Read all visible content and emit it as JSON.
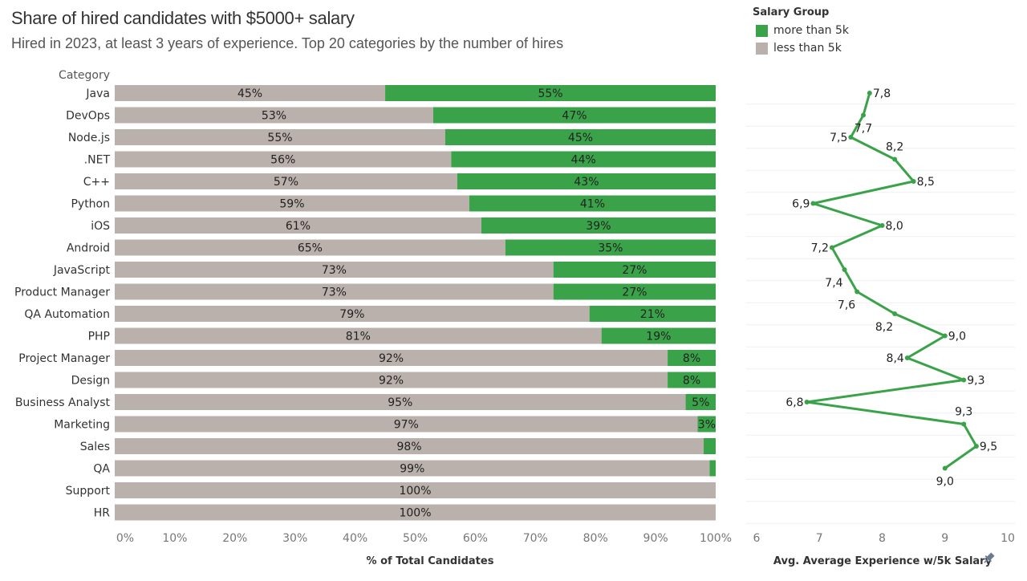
{
  "header": {
    "title": "Share of hired candidates with $5000+ salary",
    "subtitle": "Hired in 2023, at least 3 years of experience. Top 20 categories by the number of hires"
  },
  "legend": {
    "title": "Salary Group",
    "items": [
      {
        "label": "more than 5k",
        "color": "#3aa349"
      },
      {
        "label": "less than 5k",
        "color": "#bab0ac"
      }
    ]
  },
  "chart_data": [
    {
      "type": "bar",
      "stacked": true,
      "orientation": "horizontal",
      "row_header": "Category",
      "categories": [
        "Java",
        "DevOps",
        "Node.js",
        ".NET",
        "C++",
        "Python",
        "iOS",
        "Android",
        "JavaScript",
        "Product Manager",
        "QA Automation",
        "PHP",
        "Project Manager",
        "Design",
        "Business Analyst",
        "Marketing",
        "Sales",
        "QA",
        "Support",
        "HR"
      ],
      "series": [
        {
          "name": "less than 5k",
          "color": "#bab0ac",
          "values": [
            45,
            53,
            55,
            56,
            57,
            59,
            61,
            65,
            73,
            73,
            79,
            81,
            92,
            92,
            95,
            97,
            98,
            99,
            100,
            100
          ],
          "labels": [
            "45%",
            "53%",
            "55%",
            "56%",
            "57%",
            "59%",
            "61%",
            "65%",
            "73%",
            "73%",
            "79%",
            "81%",
            "92%",
            "92%",
            "95%",
            "97%",
            "98%",
            "99%",
            "100%",
            "100%"
          ]
        },
        {
          "name": "more than 5k",
          "color": "#3aa349",
          "values": [
            55,
            47,
            45,
            44,
            43,
            41,
            39,
            35,
            27,
            27,
            21,
            19,
            8,
            8,
            5,
            3,
            2,
            1,
            0,
            0
          ],
          "labels": [
            "55%",
            "47%",
            "45%",
            "44%",
            "43%",
            "41%",
            "39%",
            "35%",
            "27%",
            "27%",
            "21%",
            "19%",
            "8%",
            "8%",
            "5%",
            "3%",
            "",
            "",
            "",
            ""
          ]
        }
      ],
      "xlabel": "% of Total Candidates",
      "xlim": [
        0,
        100
      ],
      "xticks": [
        "0%",
        "10%",
        "20%",
        "30%",
        "40%",
        "50%",
        "60%",
        "70%",
        "80%",
        "90%",
        "100%"
      ]
    },
    {
      "type": "line",
      "orientation": "vertical",
      "color": "#3aa349",
      "categories": [
        "Java",
        "DevOps",
        "Node.js",
        ".NET",
        "C++",
        "Python",
        "iOS",
        "Android",
        "JavaScript",
        "Product Manager",
        "QA Automation",
        "PHP",
        "Project Manager",
        "Design",
        "Business Analyst",
        "Marketing",
        "Sales",
        "QA",
        "Support",
        "HR"
      ],
      "values": [
        7.8,
        7.7,
        7.5,
        8.2,
        8.5,
        6.9,
        8.0,
        7.2,
        7.4,
        7.6,
        8.2,
        9.0,
        8.4,
        9.3,
        6.8,
        9.3,
        9.5,
        9.0,
        null,
        null
      ],
      "labels": [
        "7,8",
        "7,7",
        "7,5",
        "8,2",
        "8,5",
        "6,9",
        "8,0",
        "7,2",
        "7,4",
        "7,6",
        "8,2",
        "9,0",
        "8,4",
        "9,3",
        "6,8",
        "9,3",
        "9,5",
        "9,0",
        "",
        ""
      ],
      "label_side": [
        "right",
        "below",
        "left",
        "above",
        "right",
        "left",
        "right",
        "left",
        "below-left",
        "below-left",
        "below-left",
        "right",
        "left",
        "right",
        "left",
        "above",
        "right",
        "below"
      ],
      "xlabel": "Avg. Average Experience w/5k Salary",
      "xlim": [
        6,
        10
      ],
      "xticks": [
        "6",
        "7",
        "8",
        "9",
        "10"
      ],
      "pin_icon": "pin-icon"
    }
  ]
}
